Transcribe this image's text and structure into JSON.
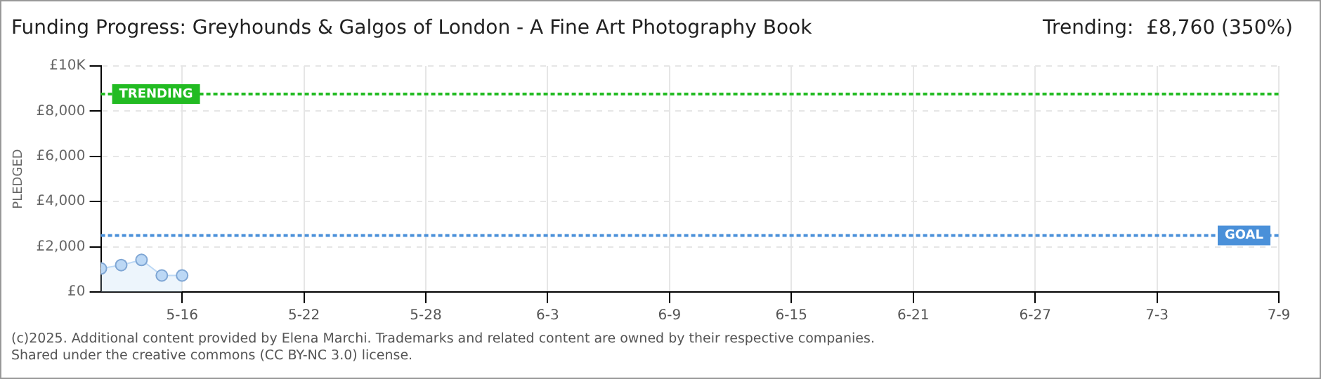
{
  "chart_data": {
    "type": "area",
    "title": "Funding Progress: Greyhounds & Galgos of London - A Fine Art Photography Book",
    "subtitle": "Trending:  £8,760 (350%)",
    "ylabel": "PLEDGED",
    "x": [
      "--05-12",
      "--05-13",
      "--05-14",
      "--05-15",
      "--05-16"
    ],
    "series": [
      {
        "color": "#bcd8f5",
        "values": [
          1040,
          1190,
          1420,
          730,
          730
        ]
      }
    ],
    "xlim": [
      "--05-12",
      "--07-09"
    ],
    "xticks": [
      {
        "value": "--05-16",
        "label": "5-16"
      },
      {
        "value": "--05-22",
        "label": "5-22"
      },
      {
        "value": "--05-28",
        "label": "5-28"
      },
      {
        "value": "--06-03",
        "label": "6-3"
      },
      {
        "value": "--06-09",
        "label": "6-9"
      },
      {
        "value": "--06-15",
        "label": "6-15"
      },
      {
        "value": "--06-21",
        "label": "6-21"
      },
      {
        "value": "--06-27",
        "label": "6-27"
      },
      {
        "value": "--07-03",
        "label": "7-3"
      },
      {
        "value": "--07-09",
        "label": "7-9"
      }
    ],
    "ylim": [
      0,
      10000
    ],
    "yticks": [
      {
        "value": 0,
        "label": "£0"
      },
      {
        "value": 2000,
        "label": "£2,000"
      },
      {
        "value": 4000,
        "label": "£4,000"
      },
      {
        "value": 6000,
        "label": "£6,000"
      },
      {
        "value": 8000,
        "label": "£8,000"
      },
      {
        "value": 10000,
        "label": "£10K"
      }
    ],
    "ref_lines": [
      {
        "axis": "y",
        "value": 8760,
        "label": "TRENDING",
        "color": "#22bb22",
        "line_style": "dotted"
      },
      {
        "axis": "y",
        "value": 2500,
        "label": "GOAL",
        "color": "#4a90d9",
        "line_style": "dotted"
      }
    ],
    "grid": true,
    "marker": "circle",
    "legend": false,
    "annotations": [
      "(c)2025. Additional content provided by Elena Marchi. Trademarks and related content are owned by their respective companies.",
      "Shared under the creative commons (CC BY-NC 3.0) license."
    ]
  }
}
